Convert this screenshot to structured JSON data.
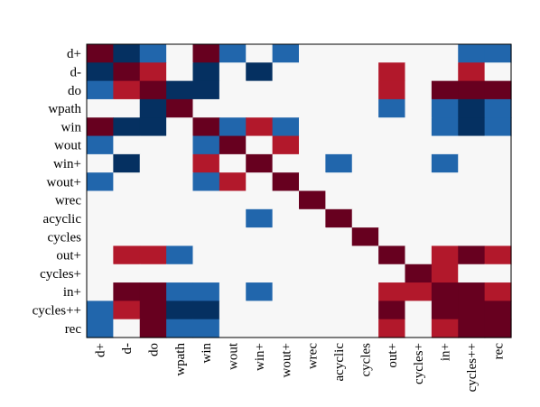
{
  "chart_data": {
    "type": "heatmap",
    "title": "",
    "xlabel": "",
    "ylabel": "",
    "labels": [
      "d+",
      "d-",
      "do",
      "wpath",
      "win",
      "wout",
      "win+",
      "wout+",
      "wrec",
      "acyclic",
      "cycles",
      "out+",
      "cycles+",
      "in+",
      "cycles++",
      "rec"
    ],
    "value_range": [
      -1,
      1
    ],
    "colorscale": {
      "-1": "#053061",
      "-0.75": "#0b3c70",
      "-0.5": "#2166ac",
      "0": "#f7f7f7",
      "0.5": "#b2182b",
      "0.75": "#a10f2a",
      "1": "#67001f"
    },
    "grid": false,
    "legend": "none",
    "matrix": [
      [
        1,
        -1,
        -0.5,
        0,
        1,
        -0.5,
        0,
        -0.5,
        0,
        0,
        0,
        0,
        0,
        0,
        -0.5,
        -0.5
      ],
      [
        -1,
        1,
        0.5,
        0,
        -1,
        0,
        -1,
        0,
        0,
        0,
        0,
        0.5,
        0,
        0,
        0.5,
        0
      ],
      [
        -0.5,
        0.5,
        1,
        -1,
        -1,
        0,
        0,
        0,
        0,
        0,
        0,
        0.5,
        0,
        1,
        1,
        1
      ],
      [
        0,
        0,
        -1,
        1,
        0,
        0,
        0,
        0,
        0,
        0,
        0,
        -0.5,
        0,
        -0.5,
        -1,
        -0.5
      ],
      [
        1,
        -1,
        -1,
        0,
        1,
        -0.5,
        0.5,
        -0.5,
        0,
        0,
        0,
        0,
        0,
        -0.5,
        -1,
        -0.5
      ],
      [
        -0.5,
        0,
        0,
        0,
        -0.5,
        1,
        0,
        0.5,
        0,
        0,
        0,
        0,
        0,
        0,
        0,
        0
      ],
      [
        0,
        -1,
        0,
        0,
        0.5,
        0,
        1,
        0,
        0,
        -0.5,
        0,
        0,
        0,
        -0.5,
        0,
        0
      ],
      [
        -0.5,
        0,
        0,
        0,
        -0.5,
        0.5,
        0,
        1,
        0,
        0,
        0,
        0,
        0,
        0,
        0,
        0
      ],
      [
        0,
        0,
        0,
        0,
        0,
        0,
        0,
        0,
        1,
        0,
        0,
        0,
        0,
        0,
        0,
        0
      ],
      [
        0,
        0,
        0,
        0,
        0,
        0,
        -0.5,
        0,
        0,
        1,
        0,
        0,
        0,
        0,
        0,
        0
      ],
      [
        0,
        0,
        0,
        0,
        0,
        0,
        0,
        0,
        0,
        0,
        1,
        0,
        0,
        0,
        0,
        0
      ],
      [
        0,
        0.5,
        0.5,
        -0.5,
        0,
        0,
        0,
        0,
        0,
        0,
        0,
        1,
        0,
        0.5,
        1,
        0.5
      ],
      [
        0,
        0,
        0,
        0,
        0,
        0,
        0,
        0,
        0,
        0,
        0,
        0,
        1,
        0.5,
        0,
        0
      ],
      [
        0,
        1,
        1,
        -0.5,
        -0.5,
        0,
        -0.5,
        0,
        0,
        0,
        0,
        0.5,
        0.5,
        1,
        1,
        0.5
      ],
      [
        -0.5,
        0.5,
        1,
        -1,
        -1,
        0,
        0,
        0,
        0,
        0,
        0,
        1,
        0,
        1,
        1,
        1
      ],
      [
        -0.5,
        0,
        1,
        -0.5,
        -0.5,
        0,
        0,
        0,
        0,
        0,
        0,
        0.5,
        0,
        0.5,
        1,
        1
      ]
    ]
  }
}
